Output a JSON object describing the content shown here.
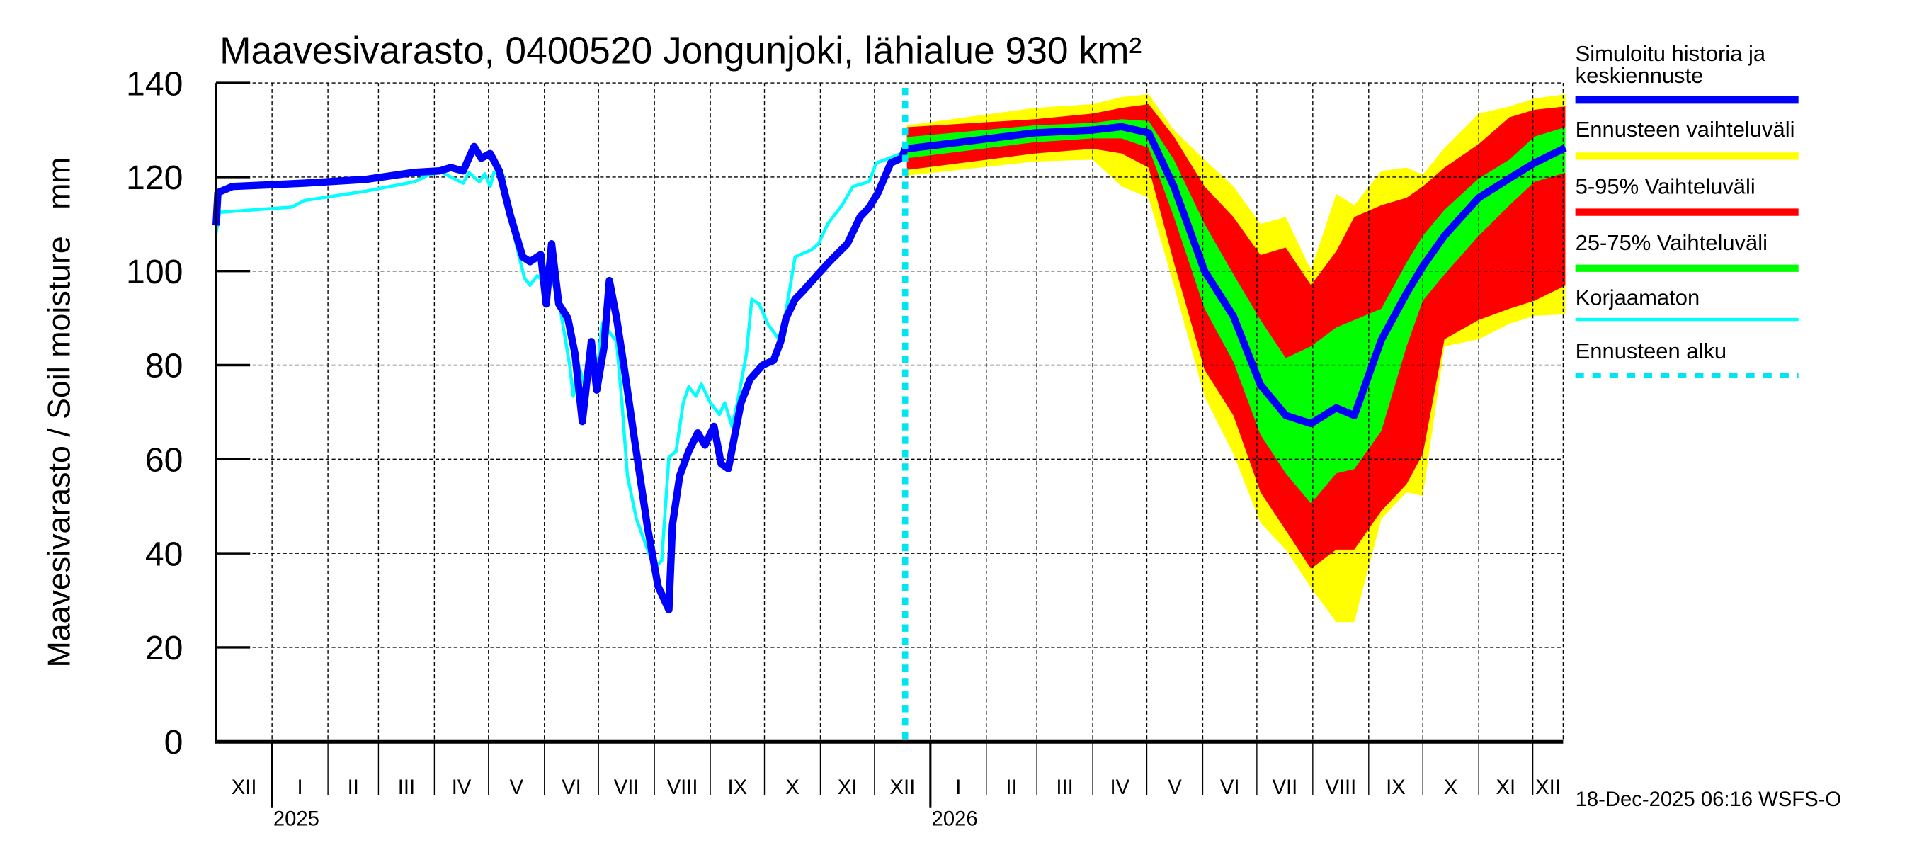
{
  "chart_data": {
    "type": "area",
    "title": "Maavesivarasto, 0400520 Jongunjoki, lähialue 930 km²",
    "ylabel": "Maavesivarasto / Soil moisture   mm",
    "xlabel": "",
    "x_unit": "days since 2025-01-01",
    "xlim": [
      -31,
      716
    ],
    "ylim": [
      0,
      140
    ],
    "yticks": [
      0,
      20,
      40,
      60,
      80,
      100,
      120,
      140
    ],
    "grid": true,
    "month_labels": [
      "XII",
      "I",
      "II",
      "III",
      "IV",
      "V",
      "VI",
      "VII",
      "VIII",
      "IX",
      "X",
      "XI",
      "XII",
      "I",
      "II",
      "III",
      "IV",
      "V",
      "VI",
      "VII",
      "VIII",
      "IX",
      "X",
      "XI",
      "XII"
    ],
    "year_labels": [
      {
        "label": "2025",
        "day": 0
      },
      {
        "label": "2026",
        "day": 365
      }
    ],
    "forecast_start_day": 351,
    "colors": {
      "simulated": "#0000ff",
      "full_range": "#ffff00",
      "p5_95": "#ff0000",
      "p25_75": "#00ff00",
      "uncorrected": "#00ffff",
      "forecast_start": "#00e5f0"
    },
    "legend": {
      "placement": "right",
      "entries": [
        {
          "key": "simulated",
          "label_lines": [
            "Simuloitu historia ja",
            "keskiennuste"
          ]
        },
        {
          "key": "full_range",
          "label_lines": [
            "Ennusteen vaihteluväli"
          ]
        },
        {
          "key": "p5_95",
          "label_lines": [
            "5-95% Vaihteluväli"
          ]
        },
        {
          "key": "p25_75",
          "label_lines": [
            "25-75% Vaihteluväli"
          ]
        },
        {
          "key": "uncorrected",
          "label_lines": [
            "Korjaamaton"
          ]
        },
        {
          "key": "forecast_start",
          "label_lines": [
            "Ennusteen alku"
          ]
        }
      ]
    },
    "simulated_history": [
      [
        -31,
        109.7
      ],
      [
        -30,
        116.7
      ],
      [
        -22,
        118
      ],
      [
        18,
        118.7
      ],
      [
        52,
        119.5
      ],
      [
        79,
        121
      ],
      [
        93,
        121.3
      ],
      [
        99,
        122
      ],
      [
        106,
        121.3
      ],
      [
        112,
        126.5
      ],
      [
        116,
        124
      ],
      [
        121,
        125
      ],
      [
        126,
        121.3
      ],
      [
        132,
        112
      ],
      [
        139,
        103
      ],
      [
        143,
        102
      ],
      [
        149,
        103.5
      ],
      [
        152,
        93
      ],
      [
        155,
        105.8
      ],
      [
        159,
        93
      ],
      [
        164,
        90
      ],
      [
        168,
        82.4
      ],
      [
        172,
        68
      ],
      [
        177,
        85
      ],
      [
        180,
        74.7
      ],
      [
        184,
        83.7
      ],
      [
        187,
        98
      ],
      [
        191,
        90
      ],
      [
        195,
        80
      ],
      [
        201,
        64
      ],
      [
        208,
        46
      ],
      [
        214,
        33
      ],
      [
        220,
        28
      ],
      [
        222,
        46
      ],
      [
        226,
        56.5
      ],
      [
        231,
        61.7
      ],
      [
        236,
        65.6
      ],
      [
        240,
        63
      ],
      [
        245,
        67
      ],
      [
        249,
        59
      ],
      [
        253,
        58
      ],
      [
        256,
        64
      ],
      [
        260,
        72
      ],
      [
        265,
        77
      ],
      [
        272,
        80
      ],
      [
        278,
        81
      ],
      [
        282,
        85
      ],
      [
        285,
        90
      ],
      [
        290,
        94
      ],
      [
        295,
        96
      ],
      [
        302,
        99
      ],
      [
        309,
        102
      ],
      [
        319,
        105.8
      ],
      [
        326,
        111.5
      ],
      [
        331,
        113.5
      ],
      [
        336,
        116.7
      ],
      [
        343,
        123
      ],
      [
        349,
        124
      ],
      [
        351,
        126
      ]
    ],
    "uncorrected": [
      [
        -31,
        108
      ],
      [
        -29,
        112.5
      ],
      [
        11,
        113.6
      ],
      [
        18,
        115
      ],
      [
        52,
        117
      ],
      [
        79,
        119
      ],
      [
        87,
        120.5
      ],
      [
        94,
        121
      ],
      [
        99,
        120
      ],
      [
        106,
        118.7
      ],
      [
        109,
        121
      ],
      [
        115,
        119
      ],
      [
        118,
        120.7
      ],
      [
        121,
        118
      ],
      [
        123,
        121
      ],
      [
        128,
        120.5
      ],
      [
        133,
        109.7
      ],
      [
        137,
        103
      ],
      [
        140,
        98.5
      ],
      [
        143,
        97
      ],
      [
        147,
        99
      ],
      [
        150,
        98
      ],
      [
        153,
        96
      ],
      [
        157,
        98
      ],
      [
        160,
        91.5
      ],
      [
        165,
        80
      ],
      [
        167,
        73.4
      ],
      [
        170,
        80
      ],
      [
        174,
        74.7
      ],
      [
        177,
        82.4
      ],
      [
        180,
        77.3
      ],
      [
        183,
        89
      ],
      [
        187,
        87
      ],
      [
        191,
        85
      ],
      [
        194,
        72
      ],
      [
        197,
        56.5
      ],
      [
        202,
        47.4
      ],
      [
        208,
        41
      ],
      [
        212,
        37
      ],
      [
        216,
        38.4
      ],
      [
        220,
        60.4
      ],
      [
        224,
        61.7
      ],
      [
        228,
        72
      ],
      [
        231,
        75.4
      ],
      [
        235,
        73.4
      ],
      [
        238,
        76
      ],
      [
        243,
        72
      ],
      [
        248,
        69.5
      ],
      [
        251,
        72
      ],
      [
        255,
        67
      ],
      [
        258,
        72
      ],
      [
        263,
        82.4
      ],
      [
        266,
        94
      ],
      [
        270,
        93
      ],
      [
        275,
        88.7
      ],
      [
        282,
        85
      ],
      [
        285,
        91.5
      ],
      [
        290,
        103
      ],
      [
        299,
        104.5
      ],
      [
        303,
        105.8
      ],
      [
        308,
        110
      ],
      [
        316,
        114
      ],
      [
        322,
        118
      ],
      [
        331,
        119
      ],
      [
        335,
        123
      ],
      [
        349,
        125
      ]
    ],
    "forecast": {
      "days": [
        352,
        423,
        455,
        471,
        486,
        500,
        517,
        533,
        548,
        562,
        576,
        590,
        600,
        615,
        629,
        638,
        650,
        669,
        686,
        700,
        717
      ],
      "max": [
        131,
        134.7,
        135.5,
        137,
        137.6,
        130,
        123.7,
        118,
        110,
        111.5,
        100.2,
        116.4,
        114,
        121.3,
        122,
        120.5,
        126.2,
        133.5,
        135,
        136.7,
        137.6
      ],
      "p95": [
        130.6,
        132.3,
        133.5,
        134.7,
        135.5,
        128.6,
        118,
        111.5,
        103.4,
        105,
        97,
        104.2,
        111.5,
        114,
        115.6,
        118,
        122,
        127,
        132.7,
        134.3,
        135
      ],
      "p75": [
        128.5,
        131,
        131.5,
        132.3,
        131.9,
        123.7,
        110,
        99.3,
        89.6,
        81.5,
        84,
        88,
        89.6,
        92,
        101.8,
        107.5,
        113,
        119.7,
        123.7,
        128.6,
        130.6
      ],
      "median": [
        126,
        129.4,
        130,
        130.7,
        129.4,
        118,
        100,
        90.4,
        75.8,
        69.3,
        67.6,
        70.9,
        69.3,
        85.4,
        95.3,
        101,
        107.5,
        115.6,
        119.7,
        123,
        126.2
      ],
      "p25": [
        124,
        127.4,
        128.2,
        128.2,
        126.2,
        111.5,
        92,
        80.7,
        65.2,
        57,
        50.6,
        57,
        57.9,
        66,
        84,
        93.7,
        99.3,
        107.5,
        114,
        119,
        120.9
      ],
      "p5": [
        121.5,
        125,
        126,
        125,
        122,
        101.8,
        79,
        69.3,
        53,
        44.9,
        36.7,
        40.8,
        40.8,
        49,
        54.7,
        61.1,
        85.5,
        89.6,
        92,
        93.7,
        96.9
      ],
      "min": [
        120.3,
        123.3,
        123.7,
        118,
        115.6,
        96.9,
        73.3,
        61.1,
        46.5,
        40.8,
        32.7,
        25.4,
        25.4,
        47.3,
        53,
        52.2,
        84,
        85.5,
        88.8,
        90.5,
        90.8
      ]
    },
    "footer": "18-Dec-2025 06:16 WSFS-O"
  }
}
